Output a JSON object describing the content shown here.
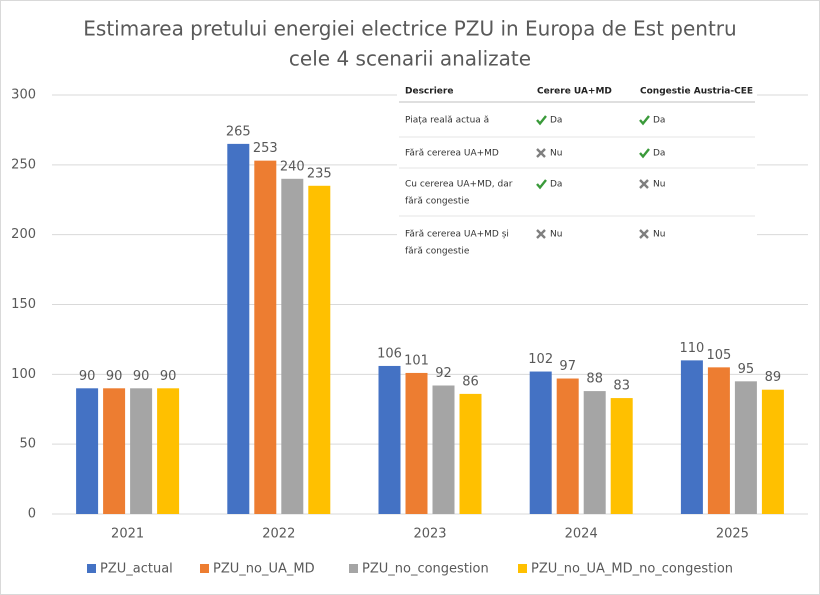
{
  "chart_data": {
    "type": "bar",
    "title": [
      "Estimarea pretului energiei electrice PZU in Europa de Est pentru",
      "cele 4 scenarii analizate"
    ],
    "categories": [
      "2021",
      "2022",
      "2023",
      "2024",
      "2025"
    ],
    "series": [
      {
        "name": "PZU_actual",
        "color": "#4472c4",
        "values": [
          90,
          265,
          106,
          102,
          110
        ]
      },
      {
        "name": "PZU_no_UA_MD",
        "color": "#ed7d31",
        "values": [
          90,
          253,
          101,
          97,
          105
        ]
      },
      {
        "name": "PZU_no_congestion",
        "color": "#a5a5a5",
        "values": [
          90,
          240,
          92,
          88,
          95
        ]
      },
      {
        "name": "PZU_no_UA_MD_no_congestion",
        "color": "#ffc000",
        "values": [
          90,
          235,
          86,
          83,
          89
        ]
      }
    ],
    "ylim": [
      0,
      300
    ],
    "yticks": [
      0,
      50,
      100,
      150,
      200,
      250,
      300
    ],
    "grid": true,
    "legend": "bottom"
  },
  "table": {
    "header": [
      "Descriere",
      "Cerere UA+MD",
      "Congestie Austria-CEE"
    ],
    "rows": [
      [
        [
          "Piața reală actua ă"
        ],
        "Da",
        "Da"
      ],
      [
        [
          "Fără cererea UA+MD"
        ],
        "Nu",
        "Da"
      ],
      [
        [
          "Cu cererea UA+MD, dar",
          "fără congestie"
        ],
        "Da",
        "Nu"
      ],
      [
        [
          "Fără cererea UA+MD și",
          "fără congestie"
        ],
        "Nu",
        "Nu"
      ]
    ]
  }
}
